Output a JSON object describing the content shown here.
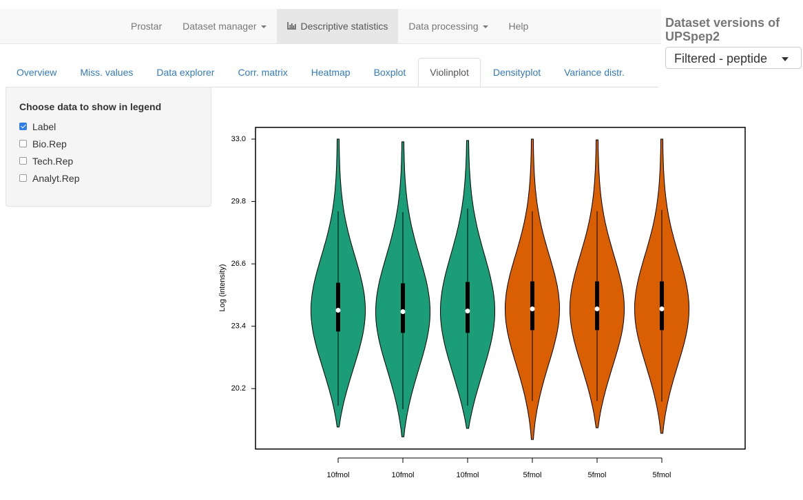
{
  "nav": {
    "items": [
      "Prostar",
      "Dataset manager",
      "Descriptive statistics",
      "Data processing",
      "Help"
    ],
    "dropdowns": [
      false,
      true,
      false,
      true,
      false
    ],
    "active_item": 2
  },
  "versions": {
    "title": "Dataset versions of UPSpep2",
    "selected": "Filtered - peptide"
  },
  "tabs": {
    "items": [
      "Overview",
      "Miss. values",
      "Data explorer",
      "Corr. matrix",
      "Heatmap",
      "Boxplot",
      "Violinplot",
      "Densityplot",
      "Variance distr."
    ],
    "active": 6
  },
  "sidebar": {
    "title": "Choose data to show in legend",
    "options": [
      {
        "label": "Label",
        "checked": true
      },
      {
        "label": "Bio.Rep",
        "checked": false
      },
      {
        "label": "Tech.Rep",
        "checked": false
      },
      {
        "label": "Analyt.Rep",
        "checked": false
      }
    ]
  },
  "chart_data": {
    "type": "violin",
    "ylabel": "Log (intensity)",
    "ylim": [
      17.1,
      33.6
    ],
    "yticks": [
      {
        "value": 20.2,
        "label": "20.2"
      },
      {
        "value": 23.4,
        "label": "23.4"
      },
      {
        "value": 26.6,
        "label": "26.6"
      },
      {
        "value": 29.8,
        "label": "29.8"
      },
      {
        "value": 33,
        "label": "33.0"
      }
    ],
    "violins": [
      {
        "label": "10fmol",
        "color": "#1b9e77",
        "min": 18.23,
        "whisker_low": 19.32,
        "q1": 23.13,
        "median": 24.22,
        "q3": 25.63,
        "whisker_high": 29.3,
        "max": 33.0
      },
      {
        "label": "10fmol",
        "color": "#1b9e77",
        "min": 17.73,
        "whisker_low": 19.14,
        "q1": 23.06,
        "median": 24.15,
        "q3": 25.6,
        "whisker_high": 29.26,
        "max": 32.86
      },
      {
        "label": "10fmol",
        "color": "#1b9e77",
        "min": 18.16,
        "whisker_low": 19.32,
        "q1": 23.06,
        "median": 24.18,
        "q3": 25.67,
        "whisker_high": 29.44,
        "max": 32.93
      },
      {
        "label": "5fmol",
        "color": "#d95f02",
        "min": 17.59,
        "whisker_low": 19.57,
        "q1": 23.2,
        "median": 24.29,
        "q3": 25.7,
        "whisker_high": 29.3,
        "max": 33.0
      },
      {
        "label": "5fmol",
        "color": "#d95f02",
        "min": 18.19,
        "whisker_low": 19.57,
        "q1": 23.2,
        "median": 24.29,
        "q3": 25.7,
        "whisker_high": 29.3,
        "max": 32.96
      },
      {
        "label": "5fmol",
        "color": "#d95f02",
        "min": 17.91,
        "whisker_low": 19.53,
        "q1": 23.2,
        "median": 24.29,
        "q3": 25.7,
        "whisker_high": 29.37,
        "max": 33.0
      }
    ]
  }
}
